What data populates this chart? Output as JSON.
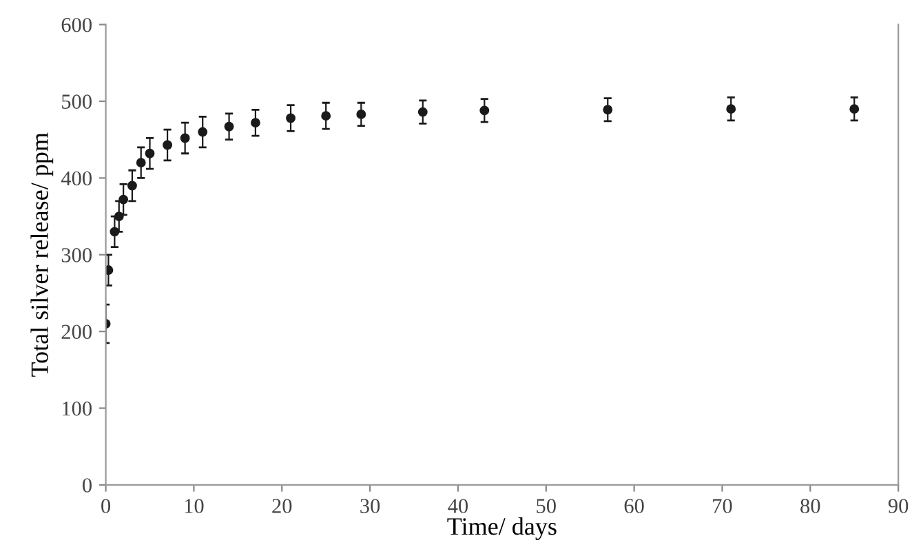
{
  "chart_data": {
    "type": "scatter",
    "xlabel": "Time/ days",
    "ylabel": "Total silver release/ ppm",
    "x": [
      0,
      0.3,
      1,
      1.5,
      2,
      3,
      4,
      5,
      7,
      9,
      11,
      14,
      17,
      21,
      25,
      29,
      36,
      43,
      57,
      71,
      85
    ],
    "values": [
      210,
      280,
      330,
      350,
      372,
      390,
      420,
      432,
      443,
      452,
      460,
      467,
      472,
      478,
      481,
      483,
      486,
      488,
      489,
      490,
      490
    ],
    "errors": [
      25,
      20,
      20,
      20,
      20,
      20,
      20,
      20,
      20,
      20,
      20,
      17,
      17,
      17,
      17,
      15,
      15,
      15,
      15,
      15,
      15
    ],
    "color": "#1a1a1a",
    "marker": "circle",
    "xlim": [
      0,
      90
    ],
    "xticks": [
      0,
      10,
      20,
      30,
      40,
      50,
      60,
      70,
      80,
      90
    ],
    "ylim": [
      0,
      600
    ],
    "yticks": [
      0,
      100,
      200,
      300,
      400,
      500,
      600
    ],
    "grid": false
  }
}
